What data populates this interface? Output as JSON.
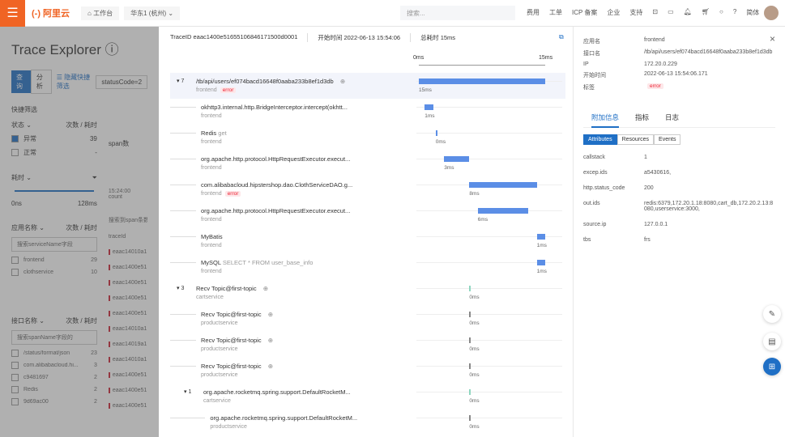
{
  "topbar": {
    "logo": "(-) 阿里云",
    "workbench": "⌂ 工作台",
    "region": "华东1 (杭州) ⌄",
    "search_placeholder": "搜索...",
    "links": [
      "费用",
      "工单",
      "ICP 备案",
      "企业",
      "支持"
    ],
    "lang": "简体"
  },
  "left": {
    "title": "Trace Explorer ⓘ",
    "mode_tabs": [
      "查询",
      "分析"
    ],
    "hide_filter": "☰ 隐藏快捷筛选",
    "query": "statusCode=2",
    "quick_filter": "快捷筛选",
    "status_label": "状态 ⌄",
    "count_time": "次数 / 耗时",
    "status_items": [
      {
        "label": "异常",
        "count": "39",
        "checked": true
      },
      {
        "label": "正常",
        "count": "-",
        "checked": false
      }
    ],
    "duration_label": "耗时 ⌄",
    "range_min": "0ns",
    "range_max": "128ms",
    "span_count_label": "span数",
    "chart_time": "15:24:00",
    "chart_legend": "count",
    "app_label": "应用名称 ⌄",
    "app_search": "搜索serviceName字段",
    "apps": [
      {
        "name": "frontend",
        "count": "29"
      },
      {
        "name": "clothservice",
        "count": "10"
      }
    ],
    "iface_label": "接口名称 ⌄",
    "iface_search": "搜索spanName字段的",
    "ifaces": [
      {
        "name": "/status/format/json",
        "count": "23"
      },
      {
        "name": "com.alibabacloud.hi...",
        "count": "3"
      },
      {
        "name": "c9481697",
        "count": "2"
      },
      {
        "name": "Redis",
        "count": "2"
      },
      {
        "name": "9d69ac00",
        "count": "2"
      }
    ],
    "found_label": "搜索到span条数:",
    "traceid_col": "traceId",
    "trace_rows": [
      "eaac14010a1",
      "eaac1400e51",
      "eaac1400e51",
      "eaac1400e51",
      "eaac1400e51",
      "eaac14010a1",
      "eaac14019a1",
      "eaac14010a1",
      "eaac1400e51",
      "eaac1400e51",
      "eaac1400e51"
    ]
  },
  "trace": {
    "trace_id": "TraceID eaac1400e51655106846171500d0001",
    "start": "开始时间 2022-06-13 15:54:06",
    "total": "总耗时 15ms",
    "axis_start": "0ms",
    "axis_end": "15ms",
    "total_ms": 15,
    "spans": [
      {
        "toggle": "▾ 7",
        "name": "/tb/api/users/ef074bacd16648f0aaba233b8ef1d3db",
        "svc": "frontend",
        "error": "error",
        "start": 0,
        "dur": 15,
        "label": "15ms",
        "indent": 0,
        "zoom": true
      },
      {
        "name": "okhttp3.internal.http.BridgeInterceptor.intercept(okhtt...",
        "svc": "frontend",
        "start": 0.7,
        "dur": 1,
        "label": "1ms",
        "indent": 1
      },
      {
        "name": "Redis",
        "extra": "get",
        "svc": "frontend",
        "start": 2,
        "dur": 0.1,
        "label": "0ms",
        "indent": 1
      },
      {
        "name": "org.apache.http.protocol.HttpRequestExecutor.execut...",
        "svc": "frontend",
        "start": 3,
        "dur": 3,
        "label": "3ms",
        "indent": 1
      },
      {
        "name": "com.alibabacloud.hipstershop.dao.ClothServiceDAO.g...",
        "svc": "frontend",
        "error": "error",
        "start": 6,
        "dur": 8,
        "label": "8ms",
        "indent": 1
      },
      {
        "name": "org.apache.http.protocol.HttpRequestExecutor.execut...",
        "svc": "frontend",
        "start": 7,
        "dur": 6,
        "label": "6ms",
        "indent": 1
      },
      {
        "name": "MyBatis",
        "svc": "frontend",
        "start": 14,
        "dur": 1,
        "label": "1ms",
        "indent": 1
      },
      {
        "name": "MySQL",
        "extra": "SELECT * FROM user_base_info",
        "svc": "frontend",
        "start": 14,
        "dur": 1,
        "label": "1ms",
        "indent": 1
      },
      {
        "toggle": "▾ 3",
        "name": "Recv Topic@first-topic",
        "svc": "cartservice",
        "start": 6,
        "dur": 0.1,
        "label": "0ms",
        "indent": 0,
        "zoom": true,
        "color": "#8fd6c0"
      },
      {
        "name": "Recv Topic@first-topic",
        "svc": "productservice",
        "start": 6,
        "dur": 0.1,
        "label": "0ms",
        "indent": 1,
        "zoom": true,
        "color": "#888"
      },
      {
        "name": "Recv Topic@first-topic",
        "svc": "productservice",
        "start": 6,
        "dur": 0.1,
        "label": "0ms",
        "indent": 1,
        "zoom": true,
        "color": "#888"
      },
      {
        "name": "Recv Topic@first-topic",
        "svc": "productservice",
        "start": 6,
        "dur": 0.1,
        "label": "0ms",
        "indent": 1,
        "zoom": true,
        "color": "#888"
      },
      {
        "toggle": "▾ 1",
        "name": "org.apache.rocketmq.spring.support.DefaultRocketM...",
        "svc": "cartservice",
        "start": 6,
        "dur": 0.1,
        "label": "0ms",
        "indent": 0.3,
        "color": "#8fd6c0"
      },
      {
        "name": "org.apache.rocketmq.spring.support.DefaultRocketM...",
        "svc": "productservice",
        "start": 6,
        "dur": 0.1,
        "label": "0ms",
        "indent": 1.3,
        "color": "#888"
      }
    ]
  },
  "detail": {
    "fields": [
      {
        "k": "应用名",
        "v": "frontend"
      },
      {
        "k": "接口名",
        "v": "/tb/api/users/ef074bacd16648f0aaba233b8ef1d3db"
      },
      {
        "k": "IP",
        "v": "172.20.0.229"
      },
      {
        "k": "开始时间",
        "v": "2022-06-13 15:54:06.171"
      }
    ],
    "tag_label": "标签",
    "tag": "error",
    "tabs": [
      "附加信息",
      "指标",
      "日志"
    ],
    "segments": [
      "Attributes",
      "Resources",
      "Events"
    ],
    "attrs": [
      {
        "k": "callstack",
        "v": "1"
      },
      {
        "k": "excep.ids",
        "v": "a5430616,"
      },
      {
        "k": "http.status_code",
        "v": "200"
      },
      {
        "k": "out.ids",
        "v": "redis:6379,172.20.1.18:8080,cart_db,172.20.2.13:8080,userservice:3000,"
      },
      {
        "k": "source.ip",
        "v": "127.0.0.1"
      },
      {
        "k": "tbs",
        "v": "frs"
      }
    ],
    "close": "×"
  },
  "colors": {
    "accent": "#1f6fc5",
    "brand": "#f06424",
    "bar": "#5b8ee6",
    "error": "#e23"
  }
}
